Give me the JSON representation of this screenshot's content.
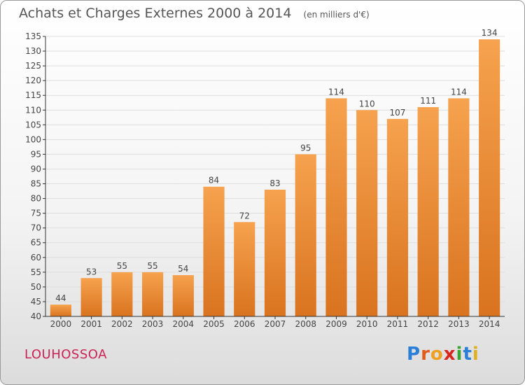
{
  "header": {
    "title": "Achats et Charges Externes 2000 à 2014",
    "unit": "(en milliers d'€)"
  },
  "footer": {
    "commune": "LOUHOSSOA",
    "logo_letters": [
      "P",
      "r",
      "o",
      "x",
      "i",
      "t",
      "i"
    ],
    "logo_colors": [
      "#2b7fd6",
      "#e05a1a",
      "#f0a020",
      "#d8261c",
      "#3aa537",
      "#2b7fd6",
      "#e0b020"
    ]
  },
  "colors": {
    "bar_light": "#f6a24e",
    "bar_dark": "#d9731f",
    "grid": "#dddddd",
    "axis": "#333333",
    "text": "#444444"
  },
  "chart_data": {
    "type": "bar",
    "categories": [
      "2000",
      "2001",
      "2002",
      "2003",
      "2004",
      "2005",
      "2006",
      "2007",
      "2008",
      "2009",
      "2010",
      "2011",
      "2012",
      "2013",
      "2014"
    ],
    "values": [
      44,
      53,
      55,
      55,
      54,
      84,
      72,
      83,
      95,
      114,
      110,
      107,
      111,
      114,
      134
    ],
    "ylim": [
      40,
      135
    ],
    "yticks": [
      40,
      45,
      50,
      55,
      60,
      65,
      70,
      75,
      80,
      85,
      90,
      95,
      100,
      105,
      110,
      115,
      120,
      125,
      130,
      135
    ],
    "grid": true,
    "data_labels": true
  }
}
